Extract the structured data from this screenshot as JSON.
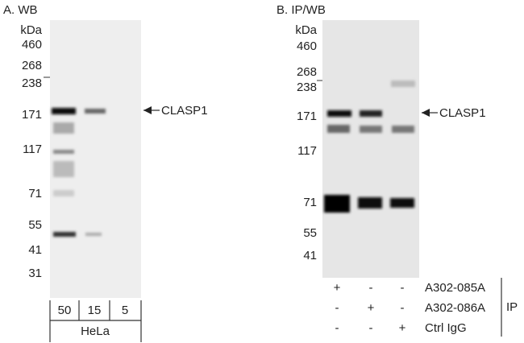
{
  "panels": [
    {
      "title": "A. WB",
      "unit": "kDa",
      "markers": [
        "460",
        "268",
        "238",
        "171",
        "117",
        "71",
        "55",
        "41",
        "31"
      ],
      "target": "CLASP1",
      "lanes": [
        "50",
        "15",
        "5"
      ],
      "sample": "HeLa"
    },
    {
      "title": "B. IP/WB",
      "unit": "kDa",
      "markers": [
        "460",
        "268",
        "238",
        "171",
        "117",
        "71",
        "55",
        "41"
      ],
      "target": "CLASP1",
      "rows": [
        {
          "signs": [
            "+",
            "-",
            "-"
          ],
          "label": "A302-085A"
        },
        {
          "signs": [
            "-",
            "+",
            "-"
          ],
          "label": "A302-086A"
        },
        {
          "signs": [
            "-",
            "-",
            "+"
          ],
          "label": "Ctrl IgG"
        }
      ],
      "group": "IP"
    }
  ]
}
